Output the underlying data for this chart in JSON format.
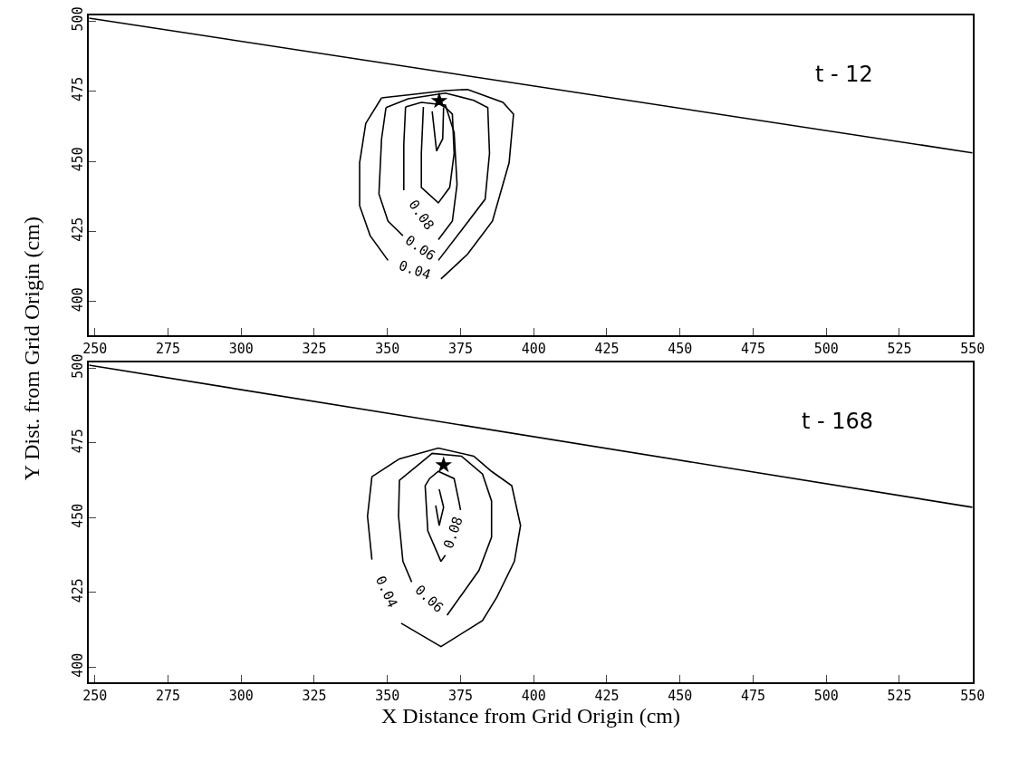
{
  "chart_data": [
    {
      "type": "line",
      "ylabel": "Y Dist. from Grid Origin (cm)",
      "xlim": [
        248,
        550
      ],
      "ylim": [
        388,
        502
      ],
      "xticks": [
        250,
        275,
        300,
        325,
        350,
        375,
        400,
        425,
        450,
        475,
        500,
        525,
        550
      ],
      "yticks": [
        400,
        425,
        450,
        475,
        500
      ],
      "legend": false,
      "grid": false,
      "annotations": [
        "t - 12"
      ],
      "series": [
        {
          "color": "#000000",
          "x": [
            248,
            550
          ],
          "values": [
            501,
            453
          ]
        },
        {
          "name": "0.04",
          "color": "#000000",
          "x": [
            348.0,
            342.6,
            340.5,
            340.5,
            344.1,
            350.2,
            null,
            368.3,
            377.4,
            385.9,
            391.6,
            393.1,
            389.5,
            377.4,
            369.8,
            359.2,
            348.0
          ],
          "values": [
            472.6,
            463.5,
            449.5,
            434.2,
            423.5,
            414.7,
            null,
            408.1,
            416.9,
            428.7,
            449.5,
            466.8,
            471.0,
            475.6,
            475.2,
            473.9,
            472.6
          ]
        },
        {
          "name": "0.06",
          "color": "#000000",
          "x": [
            349.5,
            348.0,
            347.1,
            350.2,
            355.3,
            null,
            367.4,
            375.3,
            383.4,
            384.9,
            384.3,
            379.5,
            369.8,
            357.1,
            349.5
          ],
          "values": [
            469.1,
            458.0,
            438.4,
            428.7,
            423.5,
            null,
            414.7,
            425.4,
            436.5,
            452.8,
            469.1,
            471.7,
            474.3,
            472.3,
            469.1
          ]
        },
        {
          "name": "0.08",
          "color": "#000000",
          "x": [
            356.2,
            355.6,
            355.6,
            null,
            367.4,
            372.2,
            373.8,
            372.8,
            369.8,
            361.6,
            356.2
          ],
          "values": [
            469.4,
            456.0,
            439.7,
            null,
            422.1,
            428.7,
            441.7,
            460.3,
            470.0,
            471.0,
            469.4
          ]
        },
        {
          "color": "#000000",
          "x": [
            362.3,
            361.6,
            361.6,
            367.4,
            371.3,
            372.8,
            372.2,
            368.3
          ],
          "values": [
            469.4,
            452.8,
            440.7,
            435.2,
            440.7,
            452.8,
            466.8,
            470.7
          ]
        },
        {
          "color": "#000000",
          "x": [
            365.3,
            366.8,
            368.9,
            369.2
          ],
          "values": [
            467.8,
            453.7,
            458.0,
            469.1
          ]
        },
        {
          "type": "scatter",
          "marker": "star",
          "color": "#000000",
          "x": [
            367.7
          ],
          "values": [
            471.5
          ]
        }
      ]
    },
    {
      "type": "line",
      "xlabel": "X Distance from Grid Origin (cm)",
      "xlim": [
        248,
        550
      ],
      "ylim": [
        395,
        502
      ],
      "xticks": [
        250,
        275,
        300,
        325,
        350,
        375,
        400,
        425,
        450,
        475,
        500,
        525,
        550
      ],
      "yticks": [
        400,
        425,
        450,
        475,
        500
      ],
      "legend": false,
      "grid": false,
      "annotations": [
        "t - 168"
      ],
      "series": [
        {
          "color": "#000000",
          "x": [
            248,
            550
          ],
          "values": [
            501,
            453.5
          ]
        },
        {
          "name": "0.04",
          "color": "#000000",
          "x": [
            344.7,
            null,
            354.7,
            368.3,
            382.5,
            387.4,
            393.4,
            395.5,
            392.5,
            385.6,
            379.5,
            367.4,
            354.1,
            344.7,
            343.2,
            344.7
          ],
          "values": [
            436.0,
            null,
            414.7,
            406.9,
            415.6,
            423.4,
            435.4,
            447.4,
            460.7,
            465.5,
            470.6,
            473.3,
            469.7,
            463.7,
            450.5,
            436.0
          ]
        },
        {
          "name": "0.06",
          "color": "#000000",
          "x": [
            370.4,
            null,
            358.3,
            355.3,
            353.8,
            354.1,
            365.3,
            375.3,
            382.5,
            385.6,
            385.6,
            381.3,
            370.4
          ],
          "values": [
            417.4,
            null,
            428.5,
            435.4,
            450.5,
            462.5,
            471.5,
            470.6,
            464.6,
            455.6,
            443.5,
            432.4,
            417.4
          ]
        },
        {
          "name": "0.08",
          "color": "#000000",
          "x": [
            369.8,
            368.3,
            363.8,
            362.9,
            364.4,
            367.4,
            372.8,
            374.4,
            375.0,
            null,
            369.8
          ],
          "values": [
            437.5,
            435.4,
            445.6,
            460.7,
            463.1,
            465.5,
            463.1,
            455.6,
            452.6,
            null,
            437.5
          ]
        },
        {
          "color": "#000000",
          "x": [
            367.7,
            369.2,
            367.7,
            366.5
          ],
          "values": [
            459.5,
            453.5,
            447.4,
            454.1
          ]
        },
        {
          "type": "scatter",
          "marker": "star",
          "color": "#000000",
          "x": [
            369.2
          ],
          "values": [
            467.6
          ]
        }
      ]
    }
  ]
}
